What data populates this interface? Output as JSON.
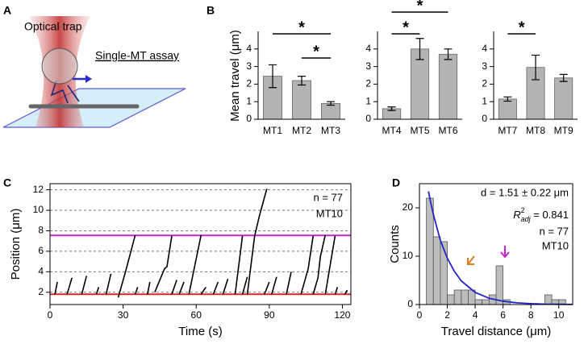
{
  "panel_labels": [
    "A",
    "B",
    "C",
    "D"
  ],
  "illustration": {
    "trap_label": "Optical trap",
    "assay_label": "Single-MT assay"
  },
  "chart_data": [
    {
      "type": "bar",
      "ylabel": "Mean travel (μm)",
      "categories": [
        "MT1",
        "MT2",
        "MT3"
      ],
      "values": [
        2.45,
        2.2,
        0.9
      ],
      "errors": [
        0.65,
        0.25,
        0.1
      ],
      "color": "#b3b3b3",
      "ylim": [
        0,
        5
      ],
      "yticks": [
        0,
        1,
        2,
        3,
        4
      ],
      "significance": [
        {
          "between": [
            0,
            2
          ],
          "label": "*"
        },
        {
          "between": [
            1,
            2
          ],
          "label": "*"
        }
      ]
    },
    {
      "type": "bar",
      "categories": [
        "MT4",
        "MT5",
        "MT6"
      ],
      "values": [
        0.6,
        4.0,
        3.7
      ],
      "errors": [
        0.1,
        0.6,
        0.3
      ],
      "color": "#b3b3b3",
      "ylim": [
        0,
        5
      ],
      "yticks": [
        0,
        1,
        2,
        3,
        4
      ],
      "significance": [
        {
          "between": [
            0,
            2
          ],
          "label": "*"
        },
        {
          "between": [
            0,
            1
          ],
          "label": "*"
        }
      ]
    },
    {
      "type": "bar",
      "categories": [
        "MT7",
        "MT8",
        "MT9"
      ],
      "values": [
        1.15,
        2.95,
        2.35
      ],
      "errors": [
        0.12,
        0.7,
        0.2
      ],
      "color": "#b3b3b3",
      "ylim": [
        0,
        5
      ],
      "yticks": [
        0,
        1,
        2,
        3,
        4
      ],
      "significance": [
        {
          "between": [
            0,
            1
          ],
          "label": "*"
        }
      ]
    },
    {
      "type": "line",
      "xlabel": "Time (s)",
      "ylabel": "Position (μm)",
      "xlim": [
        0,
        123.5
      ],
      "ylim": [
        0.8,
        12.6
      ],
      "xticks": [
        0,
        30,
        60,
        90,
        120
      ],
      "yticks": [
        2,
        4,
        6,
        8,
        10,
        12
      ],
      "grid": true,
      "reference_lines": [
        {
          "value": 7.55,
          "color": "#cc22cc"
        },
        {
          "value": 1.8,
          "color": "#d42a2a"
        }
      ],
      "series": [
        {
          "color": "#000000",
          "x": [
            2,
            3,
            null,
            7,
            9,
            null,
            13,
            15,
            null,
            19,
            20,
            null,
            23,
            25,
            null,
            28,
            31,
            35,
            null,
            35,
            36,
            null,
            40,
            41,
            null,
            43,
            47,
            48,
            50,
            null,
            50,
            52,
            null,
            53,
            55,
            null,
            57,
            62,
            null,
            62,
            64,
            null,
            67,
            69,
            null,
            71,
            73,
            null,
            76,
            79,
            null,
            79,
            81,
            null,
            81,
            84,
            86,
            89,
            null,
            88,
            90,
            null,
            91,
            93,
            null,
            97,
            99,
            null,
            103,
            106,
            108,
            null,
            108,
            110,
            111,
            113,
            null,
            113,
            117,
            null,
            117,
            118,
            null,
            121,
            122
          ],
          "values": [
            1.8,
            3,
            null,
            1.8,
            3.4,
            null,
            1.8,
            3.6,
            null,
            1.8,
            2.5,
            null,
            1.8,
            3.8,
            null,
            1.5,
            4,
            7.6,
            null,
            1.8,
            2.5,
            null,
            1.8,
            3,
            null,
            2,
            4.3,
            4.5,
            7.5,
            null,
            1.8,
            3.2,
            null,
            1.8,
            3,
            null,
            1.8,
            7.6,
            null,
            1.8,
            2.5,
            null,
            1.8,
            3,
            null,
            1.8,
            3.3,
            null,
            1.8,
            7.5,
            null,
            1.8,
            3.5,
            null,
            1.8,
            7.5,
            9.5,
            12.1,
            null,
            1.8,
            3,
            null,
            1.8,
            3.5,
            null,
            1.8,
            4,
            null,
            1.8,
            4.3,
            7.5,
            null,
            1.8,
            3.4,
            5.5,
            7.6,
            null,
            1.8,
            7.5,
            null,
            1.8,
            2.5,
            null,
            1.8,
            2.2
          ]
        }
      ],
      "annotations": [
        "n = 77",
        "MT10"
      ]
    },
    {
      "type": "histogram",
      "xlabel": "Travel distance (μm)",
      "ylabel": "Counts",
      "bins": [
        0.5,
        1,
        1.5,
        2,
        2.5,
        3,
        3.5,
        4,
        4.5,
        5,
        5.5,
        6,
        6.5,
        7,
        7.5,
        8,
        8.5,
        9,
        9.5,
        10,
        10.5
      ],
      "counts": [
        22,
        14,
        13,
        2,
        3,
        3,
        3,
        1,
        1,
        2,
        8,
        1,
        0,
        0,
        0,
        0,
        0,
        2,
        1,
        1
      ],
      "color": "#bdbdbd",
      "xlim": [
        0,
        11
      ],
      "ylim": [
        0,
        25
      ],
      "xticks": [
        0,
        2,
        4,
        6,
        8,
        10
      ],
      "yticks": [
        0,
        10,
        20
      ],
      "fit": {
        "color": "#2424c8",
        "x": [
          0.65,
          0.8,
          1,
          1.5,
          2,
          2.5,
          3,
          4,
          5,
          6,
          7,
          8,
          9,
          10,
          11
        ],
        "values": [
          23.4,
          21.2,
          18.6,
          13.3,
          9.6,
          6.9,
          4.9,
          2.5,
          1.3,
          0.68,
          0.35,
          0.18,
          0.09,
          0.05,
          0.02
        ]
      },
      "annotations": [
        "d = 1.51 ± 0.22 μm",
        {
          "symbol": "R",
          "sup": "2",
          "sub": "adj",
          "text": " = 0.841"
        },
        "n = 77",
        "MT10"
      ]
    }
  ]
}
